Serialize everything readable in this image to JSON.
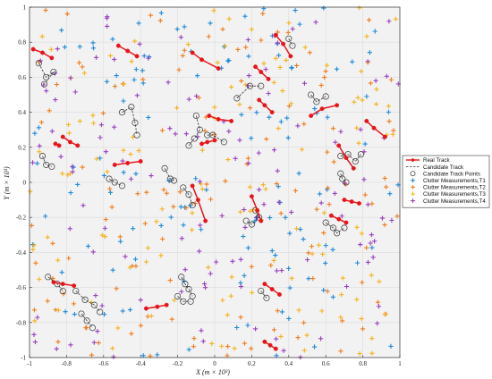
{
  "chart_data": {
    "type": "scatter",
    "title": "",
    "xlabel": "X (m × 10³)",
    "ylabel": "Y (m × 10³)",
    "xlim": [
      -1,
      1
    ],
    "ylim": [
      -1,
      1
    ],
    "xticks": [
      "-1",
      "-0.8",
      "-0.6",
      "-0.4",
      "-0.2",
      "0",
      "0.2",
      "0.4",
      "0.6",
      "0.8",
      "1"
    ],
    "yticks": [
      "-1",
      "-0.8",
      "-0.6",
      "-0.4",
      "-0.2",
      "0",
      "0.2",
      "0.4",
      "0.6",
      "0.8",
      "1"
    ],
    "grid": true,
    "legend_position": "outside-right",
    "legend": [
      {
        "label": "Real Track",
        "color": "#e8141a"
      },
      {
        "label": "Candidate Track",
        "color": "#333333"
      },
      {
        "label": "Candidate Track Points",
        "color": "#333333"
      },
      {
        "label": "Clutter Measurements,T1",
        "color": "#1f8ad8"
      },
      {
        "label": "Clutter Measurements,T2",
        "color": "#f07c1c"
      },
      {
        "label": "Clutter Measurements,T3",
        "color": "#f5b31b"
      },
      {
        "label": "Clutter Measurements,T4",
        "color": "#9a3fbf"
      }
    ],
    "real_tracks": [
      [
        [
          -0.98,
          0.76
        ],
        [
          -0.93,
          0.74
        ],
        [
          -0.88,
          0.71
        ]
      ],
      [
        [
          -0.52,
          0.78
        ],
        [
          -0.47,
          0.75
        ],
        [
          -0.42,
          0.72
        ]
      ],
      [
        [
          -0.12,
          0.74
        ],
        [
          -0.07,
          0.7
        ],
        [
          0.02,
          0.65
        ]
      ],
      [
        [
          0.33,
          0.84
        ],
        [
          0.37,
          0.79
        ],
        [
          0.41,
          0.72
        ]
      ],
      [
        [
          0.22,
          0.66
        ],
        [
          0.25,
          0.63
        ],
        [
          0.29,
          0.59
        ]
      ],
      [
        [
          0.24,
          0.47
        ],
        [
          0.27,
          0.44
        ],
        [
          0.31,
          0.4
        ]
      ],
      [
        [
          0.52,
          0.38
        ],
        [
          0.58,
          0.42
        ],
        [
          0.66,
          0.44
        ]
      ],
      [
        [
          0.82,
          0.35
        ],
        [
          0.86,
          0.31
        ],
        [
          0.92,
          0.26
        ]
      ],
      [
        [
          -0.82,
          0.26
        ],
        [
          -0.78,
          0.23
        ],
        [
          -0.74,
          0.21
        ]
      ],
      [
        [
          -0.03,
          0.38
        ],
        [
          0.02,
          0.36
        ],
        [
          0.09,
          0.35
        ]
      ],
      [
        [
          -0.07,
          0.22
        ],
        [
          -0.04,
          0.23
        ],
        [
          0.0,
          0.24
        ]
      ],
      [
        [
          -0.54,
          0.1
        ],
        [
          -0.47,
          0.11
        ],
        [
          -0.4,
          0.12
        ]
      ],
      [
        [
          -0.12,
          -0.02
        ],
        [
          -0.09,
          -0.1
        ],
        [
          -0.05,
          -0.22
        ]
      ],
      [
        [
          0.67,
          0.21
        ],
        [
          0.71,
          0.14
        ],
        [
          0.75,
          0.08
        ]
      ],
      [
        [
          0.2,
          -0.08
        ],
        [
          0.23,
          -0.16
        ],
        [
          0.25,
          -0.22
        ]
      ],
      [
        [
          0.63,
          -0.19
        ],
        [
          0.67,
          -0.21
        ],
        [
          0.71,
          -0.23
        ]
      ],
      [
        [
          0.7,
          -0.1
        ],
        [
          0.74,
          -0.11
        ],
        [
          0.78,
          -0.12
        ]
      ],
      [
        [
          -0.87,
          -0.57
        ],
        [
          -0.82,
          -0.58
        ],
        [
          -0.76,
          -0.59
        ]
      ],
      [
        [
          -0.37,
          -0.72
        ],
        [
          -0.31,
          -0.71
        ],
        [
          -0.26,
          -0.7
        ]
      ],
      [
        [
          0.27,
          -0.58
        ],
        [
          0.31,
          -0.61
        ],
        [
          0.35,
          -0.64
        ]
      ],
      [
        [
          0.27,
          -0.91
        ],
        [
          0.3,
          -0.93
        ],
        [
          0.33,
          -0.95
        ]
      ],
      [
        [
          -0.86,
          0.22
        ],
        [
          -0.84,
          0.21
        ]
      ]
    ],
    "candidate_tracks": [
      [
        [
          -0.95,
          0.68
        ],
        [
          -0.91,
          0.6
        ],
        [
          -0.87,
          0.63
        ],
        [
          -0.92,
          0.56
        ]
      ],
      [
        [
          -0.5,
          0.4
        ],
        [
          -0.45,
          0.43
        ],
        [
          -0.43,
          0.34
        ],
        [
          -0.42,
          0.27
        ]
      ],
      [
        [
          -0.1,
          0.38
        ],
        [
          -0.08,
          0.3
        ],
        [
          -0.11,
          0.25
        ],
        [
          -0.14,
          0.21
        ]
      ],
      [
        [
          -0.04,
          0.27
        ],
        [
          -0.01,
          0.27
        ],
        [
          0.05,
          0.23
        ]
      ],
      [
        [
          0.12,
          0.48
        ],
        [
          0.19,
          0.55
        ],
        [
          0.25,
          0.55
        ]
      ],
      [
        [
          0.52,
          0.5
        ],
        [
          0.55,
          0.46
        ],
        [
          0.6,
          0.49
        ]
      ],
      [
        [
          -0.93,
          0.15
        ],
        [
          -0.91,
          0.1
        ],
        [
          -0.88,
          0.09
        ]
      ],
      [
        [
          -0.57,
          0.02
        ],
        [
          -0.54,
          0.0
        ],
        [
          -0.5,
          -0.02
        ]
      ],
      [
        [
          -0.27,
          0.08
        ],
        [
          -0.24,
          0.02
        ],
        [
          -0.22,
          0.01
        ]
      ],
      [
        [
          -0.17,
          -0.03
        ],
        [
          -0.14,
          -0.07
        ],
        [
          -0.12,
          -0.13
        ]
      ],
      [
        [
          0.68,
          0.15
        ],
        [
          0.72,
          0.16
        ],
        [
          0.76,
          0.12
        ],
        [
          0.79,
          0.16
        ]
      ],
      [
        [
          0.68,
          0.05
        ],
        [
          0.69,
          0.02
        ],
        [
          0.71,
          0.0
        ]
      ],
      [
        [
          0.22,
          -0.16
        ],
        [
          0.24,
          -0.2
        ],
        [
          0.2,
          -0.24
        ],
        [
          0.17,
          -0.22
        ]
      ],
      [
        [
          0.6,
          -0.23
        ],
        [
          0.64,
          -0.26
        ],
        [
          0.66,
          -0.29
        ],
        [
          0.7,
          -0.26
        ]
      ],
      [
        [
          -0.9,
          -0.54
        ],
        [
          -0.85,
          -0.58
        ],
        [
          -0.82,
          -0.62
        ]
      ],
      [
        [
          -0.75,
          -0.62
        ],
        [
          -0.7,
          -0.67
        ],
        [
          -0.65,
          -0.7
        ],
        [
          -0.62,
          -0.74
        ]
      ],
      [
        [
          -0.72,
          -0.75
        ],
        [
          -0.69,
          -0.79
        ],
        [
          -0.66,
          -0.83
        ]
      ],
      [
        [
          -0.18,
          -0.54
        ],
        [
          -0.16,
          -0.58
        ],
        [
          -0.14,
          -0.61
        ],
        [
          -0.12,
          -0.65
        ]
      ],
      [
        [
          -0.2,
          -0.65
        ],
        [
          -0.17,
          -0.68
        ],
        [
          -0.13,
          -0.68
        ]
      ],
      [
        [
          0.25,
          -0.62
        ],
        [
          0.28,
          -0.66
        ]
      ],
      [
        [
          0.4,
          0.82
        ],
        [
          0.42,
          0.78
        ]
      ]
    ],
    "clutter": {
      "note": "random clutter measurements across the surveillance region, 4 scans",
      "points_per_scan": 130
    }
  }
}
